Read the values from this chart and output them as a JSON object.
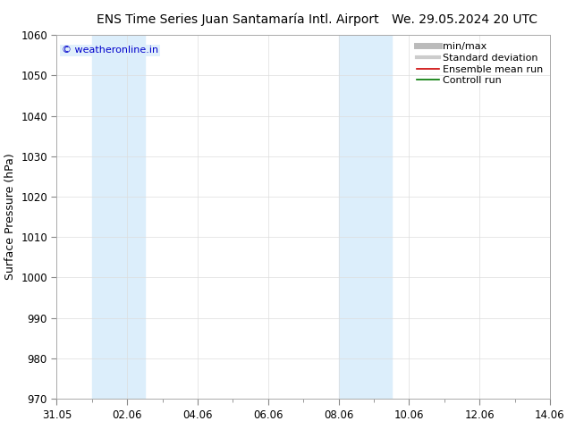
{
  "title_left": "ENS Time Series Juan Santamaría Intl. Airport",
  "title_right": "We. 29.05.2024 20 UTC",
  "ylabel": "Surface Pressure (hPa)",
  "ylim": [
    970,
    1060
  ],
  "yticks": [
    970,
    980,
    990,
    1000,
    1010,
    1020,
    1030,
    1040,
    1050,
    1060
  ],
  "x_start_day": 0,
  "x_end_day": 14,
  "xtick_labels": [
    "31.05",
    "02.06",
    "04.06",
    "06.06",
    "08.06",
    "10.06",
    "12.06",
    "14.06"
  ],
  "xtick_positions": [
    0,
    2,
    4,
    6,
    8,
    10,
    12,
    14
  ],
  "shaded_bands": [
    {
      "x_start": 1,
      "x_end": 2.5,
      "color": "#dceefb"
    },
    {
      "x_start": 8,
      "x_end": 9.5,
      "color": "#dceefb"
    }
  ],
  "watermark_text": "© weatheronline.in",
  "watermark_color": "#0000cc",
  "watermark_bg": "#dceefb",
  "legend_entries": [
    {
      "label": "min/max",
      "color": "#bbbbbb",
      "lw": 5,
      "linestyle": "-"
    },
    {
      "label": "Standard deviation",
      "color": "#cccccc",
      "lw": 3,
      "linestyle": "-"
    },
    {
      "label": "Ensemble mean run",
      "color": "#cc0000",
      "lw": 1.2,
      "linestyle": "-"
    },
    {
      "label": "Controll run",
      "color": "#007700",
      "lw": 1.2,
      "linestyle": "-"
    }
  ],
  "background_color": "#ffffff",
  "plot_bg_color": "#ffffff",
  "grid_color": "#dddddd",
  "title_fontsize": 10,
  "tick_fontsize": 8.5,
  "ylabel_fontsize": 9,
  "legend_fontsize": 8
}
